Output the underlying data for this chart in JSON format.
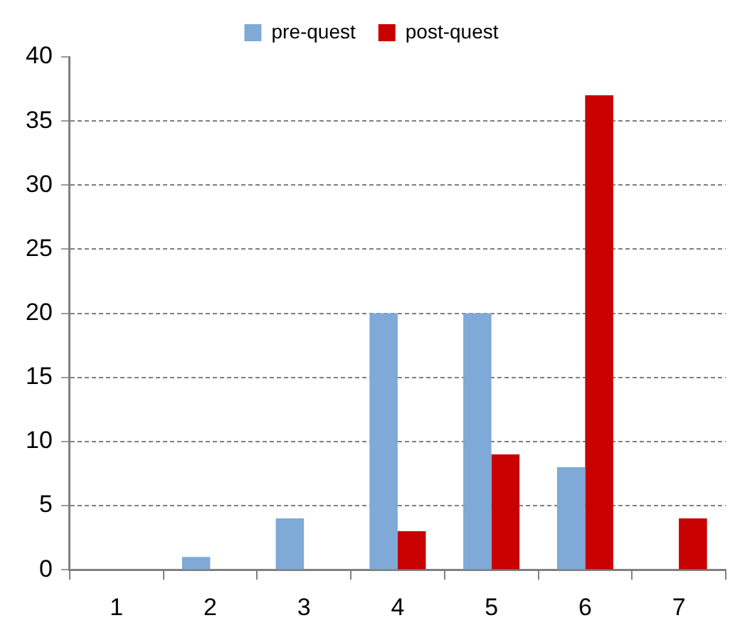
{
  "chart_data": {
    "type": "bar",
    "categories": [
      "1",
      "2",
      "3",
      "4",
      "5",
      "6",
      "7"
    ],
    "series": [
      {
        "name": "pre-quest",
        "color": "#7fa9d6",
        "values": [
          0,
          1,
          4,
          20,
          20,
          8,
          0
        ]
      },
      {
        "name": "post-quest",
        "color": "#c80000",
        "values": [
          0,
          0,
          0,
          3,
          9,
          37,
          4
        ]
      }
    ],
    "ylim": [
      0,
      40
    ],
    "yticks": [
      0,
      5,
      10,
      15,
      20,
      25,
      30,
      35,
      40
    ],
    "grid": "y",
    "legend": "top"
  }
}
